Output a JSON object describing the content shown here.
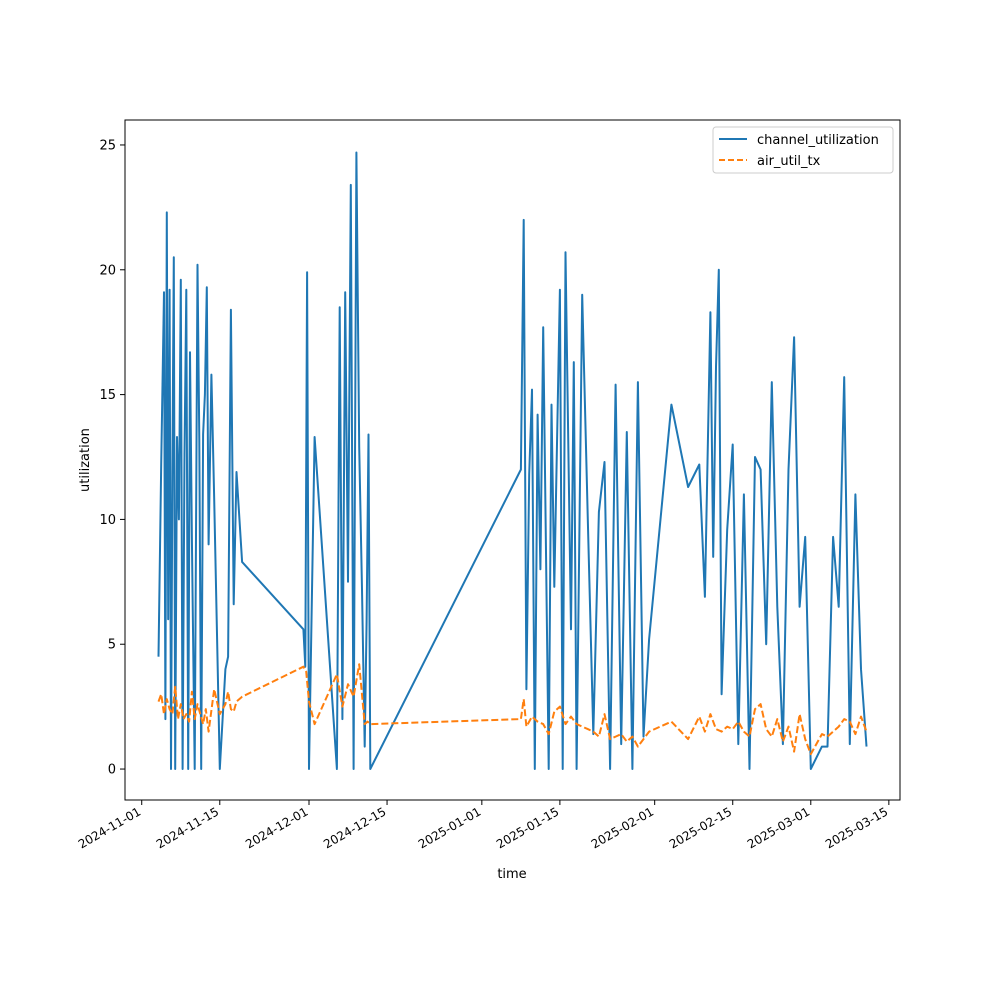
{
  "chart_data": {
    "type": "line",
    "title": "",
    "xlabel": "time",
    "ylabel": "utilization",
    "x_axis": "date",
    "xlim": [
      "2024-10-29",
      "2025-03-17"
    ],
    "ylim": [
      -1.24,
      26.0
    ],
    "grid": false,
    "legend_position": "top-right",
    "xticks": [
      "2024-11-01",
      "2024-11-15",
      "2024-12-01",
      "2024-12-15",
      "2025-01-01",
      "2025-01-15",
      "2025-02-01",
      "2025-02-15",
      "2025-03-01",
      "2025-03-15"
    ],
    "yticks": [
      "0",
      "5",
      "10",
      "15",
      "20",
      "25"
    ],
    "series": [
      {
        "name": "channel_utilization",
        "color": "#1f77b4",
        "style": "solid",
        "x": [
          "2024-11-04",
          "2024-11-04",
          "2024-11-05",
          "2024-11-05",
          "2024-11-05",
          "2024-11-05",
          "2024-11-06",
          "2024-11-06",
          "2024-11-06",
          "2024-11-06",
          "2024-11-07",
          "2024-11-07",
          "2024-11-07",
          "2024-11-08",
          "2024-11-08",
          "2024-11-08",
          "2024-11-09",
          "2024-11-09",
          "2024-11-09",
          "2024-11-10",
          "2024-11-10",
          "2024-11-11",
          "2024-11-11",
          "2024-11-11",
          "2024-11-12",
          "2024-11-12",
          "2024-11-12",
          "2024-11-13",
          "2024-11-13",
          "2024-11-14",
          "2024-11-15",
          "2024-11-16",
          "2024-11-16",
          "2024-11-17",
          "2024-11-17",
          "2024-11-18",
          "2024-11-19",
          "2024-11-30",
          "2024-11-30",
          "2024-11-30",
          "2024-12-01",
          "2024-12-02",
          "2024-12-06",
          "2024-12-06",
          "2024-12-07",
          "2024-12-07",
          "2024-12-08",
          "2024-12-08",
          "2024-12-09",
          "2024-12-09",
          "2024-12-10",
          "2024-12-10",
          "2024-12-11",
          "2024-12-11",
          "2024-12-11",
          "2024-12-12",
          "2025-01-08",
          "2025-01-08",
          "2025-01-09",
          "2025-01-09",
          "2025-01-10",
          "2025-01-10",
          "2025-01-11",
          "2025-01-11",
          "2025-01-12",
          "2025-01-13",
          "2025-01-13",
          "2025-01-14",
          "2025-01-15",
          "2025-01-15",
          "2025-01-16",
          "2025-01-17",
          "2025-01-17",
          "2025-01-18",
          "2025-01-19",
          "2025-01-20",
          "2025-01-21",
          "2025-01-22",
          "2025-01-23",
          "2025-01-24",
          "2025-01-25",
          "2025-01-26",
          "2025-01-27",
          "2025-01-28",
          "2025-01-29",
          "2025-01-30",
          "2025-01-31",
          "2025-02-04",
          "2025-02-07",
          "2025-02-09",
          "2025-02-10",
          "2025-02-11",
          "2025-02-11",
          "2025-02-12",
          "2025-02-12",
          "2025-02-13",
          "2025-02-14",
          "2025-02-15",
          "2025-02-16",
          "2025-02-17",
          "2025-02-18",
          "2025-02-19",
          "2025-02-20",
          "2025-02-21",
          "2025-02-22",
          "2025-02-23",
          "2025-02-24",
          "2025-02-25",
          "2025-02-26",
          "2025-02-27",
          "2025-02-28",
          "2025-03-01",
          "2025-03-03",
          "2025-03-04",
          "2025-03-05",
          "2025-03-06",
          "2025-03-07",
          "2025-03-08",
          "2025-03-09",
          "2025-03-10",
          "2025-03-11"
        ],
        "values": [
          4.5,
          12.2,
          19.1,
          2.0,
          22.3,
          6.0,
          19.2,
          0.0,
          12.0,
          20.5,
          0.0,
          13.3,
          10.0,
          19.6,
          0.0,
          12.6,
          19.2,
          0.0,
          16.7,
          9.2,
          0.0,
          20.2,
          13.2,
          0.0,
          13.4,
          15.0,
          19.3,
          9.0,
          15.8,
          10.8,
          0.0,
          4.0,
          4.5,
          18.4,
          6.6,
          11.9,
          8.3,
          5.6,
          4.1,
          19.9,
          0.0,
          13.3,
          0.0,
          18.5,
          2.0,
          19.1,
          7.5,
          23.4,
          0.0,
          24.7,
          12.9,
          7.2,
          0.9,
          5.9,
          13.4,
          0.0,
          12.0,
          22.0,
          3.2,
          11.8,
          15.2,
          0.0,
          14.2,
          8.0,
          17.7,
          0.0,
          14.6,
          7.3,
          19.2,
          0.0,
          20.7,
          5.6,
          16.3,
          0.0,
          19.0,
          10.0,
          1.4,
          10.3,
          12.3,
          0.0,
          15.4,
          1.0,
          13.5,
          0.0,
          15.5,
          1.3,
          5.2,
          14.6,
          11.3,
          12.2,
          6.9,
          18.3,
          8.5,
          16.1,
          20.0,
          3.0,
          9.6,
          13.0,
          1.0,
          11.0,
          0.0,
          12.5,
          12.0,
          5.0,
          15.5,
          6.5,
          1.0,
          12.0,
          17.3,
          6.5,
          9.3,
          0.0,
          0.9,
          0.9,
          9.3,
          6.5,
          15.7,
          1.0,
          11.0,
          4.0,
          0.9
        ],
        "_unused": null
      },
      {
        "name": "air_util_tx",
        "color": "#ff7f0e",
        "style": "dashed",
        "x": [
          "2024-11-04",
          "2024-11-04",
          "2024-11-05",
          "2024-11-05",
          "2024-11-06",
          "2024-11-06",
          "2024-11-07",
          "2024-11-07",
          "2024-11-08",
          "2024-11-08",
          "2024-11-09",
          "2024-11-09",
          "2024-11-10",
          "2024-11-10",
          "2024-11-11",
          "2024-11-12",
          "2024-11-12",
          "2024-11-13",
          "2024-11-14",
          "2024-11-15",
          "2024-11-16",
          "2024-11-16",
          "2024-11-17",
          "2024-11-17",
          "2024-11-18",
          "2024-11-19",
          "2024-11-30",
          "2024-11-30",
          "2024-12-01",
          "2024-12-02",
          "2024-12-06",
          "2024-12-07",
          "2024-12-08",
          "2024-12-09",
          "2024-12-10",
          "2024-12-11",
          "2024-12-11",
          "2024-12-12",
          "2025-01-08",
          "2025-01-08",
          "2025-01-09",
          "2025-01-10",
          "2025-01-11",
          "2025-01-12",
          "2025-01-13",
          "2025-01-14",
          "2025-01-15",
          "2025-01-16",
          "2025-01-17",
          "2025-01-18",
          "2025-01-19",
          "2025-01-20",
          "2025-01-21",
          "2025-01-22",
          "2025-01-23",
          "2025-01-24",
          "2025-01-25",
          "2025-01-26",
          "2025-01-27",
          "2025-01-28",
          "2025-01-29",
          "2025-01-30",
          "2025-01-31",
          "2025-02-04",
          "2025-02-07",
          "2025-02-09",
          "2025-02-10",
          "2025-02-11",
          "2025-02-12",
          "2025-02-13",
          "2025-02-14",
          "2025-02-15",
          "2025-02-16",
          "2025-02-17",
          "2025-02-18",
          "2025-02-19",
          "2025-02-20",
          "2025-02-21",
          "2025-02-22",
          "2025-02-23",
          "2025-02-24",
          "2025-02-25",
          "2025-02-26",
          "2025-02-27",
          "2025-02-28",
          "2025-03-01",
          "2025-03-03",
          "2025-03-04",
          "2025-03-05",
          "2025-03-06",
          "2025-03-07",
          "2025-03-08",
          "2025-03-09",
          "2025-03-10",
          "2025-03-11"
        ],
        "values": [
          2.7,
          3.0,
          2.2,
          2.8,
          2.4,
          2.2,
          3.3,
          2.0,
          2.6,
          2.0,
          2.2,
          1.9,
          3.1,
          2.0,
          2.6,
          1.8,
          2.4,
          1.5,
          3.2,
          2.2,
          2.6,
          3.1,
          2.4,
          2.3,
          2.7,
          2.9,
          4.1,
          3.9,
          2.7,
          1.8,
          3.8,
          2.5,
          3.4,
          2.9,
          4.2,
          1.8,
          1.9,
          1.8,
          2.0,
          2.8,
          1.7,
          2.1,
          1.9,
          1.8,
          1.4,
          2.3,
          2.5,
          1.8,
          2.1,
          1.8,
          1.7,
          1.6,
          1.5,
          1.3,
          2.2,
          1.2,
          1.3,
          1.4,
          1.1,
          1.3,
          0.9,
          1.2,
          1.5,
          1.9,
          1.2,
          2.1,
          1.5,
          2.2,
          1.6,
          1.5,
          1.7,
          1.6,
          1.9,
          1.5,
          1.3,
          2.4,
          2.6,
          1.6,
          1.3,
          2.0,
          1.1,
          1.7,
          0.7,
          2.2,
          1.2,
          0.6,
          1.4,
          1.3,
          1.5,
          1.7,
          2.0,
          1.9,
          1.4,
          2.1,
          1.5
        ]
      }
    ]
  }
}
